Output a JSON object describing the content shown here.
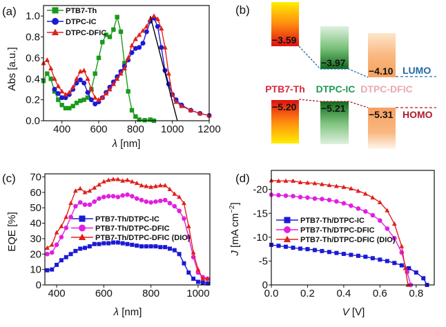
{
  "chart_data": [
    {
      "panel": "(a)",
      "type": "line",
      "xlabel_sym": "λ",
      "xlabel": "[nm]",
      "ylabel": "Abs [a.u.]",
      "xlim": [
        300,
        1200
      ],
      "ylim": [
        0,
        1.1
      ],
      "xticks": [
        400,
        600,
        800,
        1000,
        1200
      ],
      "xtick_labels": [
        "400",
        "600",
        "800",
        "1000",
        "1200"
      ],
      "yticks": [
        0,
        0.2,
        0.4,
        0.6,
        0.8,
        1.0
      ],
      "ytick_labels": [
        "0.0",
        "0.2",
        "0.4",
        "0.6",
        "0.8",
        "1.0"
      ],
      "legend_position": "top-left",
      "series": [
        {
          "name": "PTB7-Th",
          "color": "#1a9a1a",
          "marker": "square",
          "x": [
            300,
            320,
            340,
            360,
            380,
            400,
            420,
            440,
            460,
            480,
            500,
            520,
            540,
            560,
            580,
            600,
            620,
            640,
            660,
            680,
            700,
            720,
            740,
            760,
            780,
            800,
            820,
            850,
            880,
            900
          ],
          "y": [
            0.38,
            0.45,
            0.4,
            0.28,
            0.2,
            0.15,
            0.12,
            0.12,
            0.14,
            0.17,
            0.19,
            0.2,
            0.22,
            0.3,
            0.45,
            0.6,
            0.75,
            0.82,
            0.8,
            0.87,
            0.99,
            0.85,
            0.55,
            0.28,
            0.1,
            0.04,
            0.01,
            0.005,
            0.01,
            0.0
          ]
        },
        {
          "name": "DTPC-IC",
          "color": "#1a1ad6",
          "marker": "circle",
          "x": [
            360,
            380,
            400,
            420,
            440,
            460,
            480,
            500,
            520,
            540,
            560,
            580,
            600,
            620,
            640,
            660,
            680,
            700,
            720,
            740,
            760,
            780,
            800,
            820,
            840,
            860,
            880,
            900,
            920,
            940,
            960,
            980,
            1000,
            1020,
            1050,
            1100,
            1150,
            1200
          ],
          "y": [
            0.3,
            0.26,
            0.22,
            0.22,
            0.25,
            0.3,
            0.36,
            0.39,
            0.36,
            0.27,
            0.2,
            0.16,
            0.18,
            0.22,
            0.27,
            0.32,
            0.37,
            0.42,
            0.47,
            0.52,
            0.58,
            0.65,
            0.69,
            0.7,
            0.74,
            0.85,
            0.95,
            0.98,
            0.9,
            0.7,
            0.48,
            0.35,
            0.25,
            0.2,
            0.15,
            0.1,
            0.07,
            0.05
          ]
        },
        {
          "name": "DTPC-DFIC",
          "color": "#e0201a",
          "marker": "triangle",
          "x": [
            300,
            320,
            340,
            360,
            380,
            400,
            420,
            440,
            460,
            480,
            500,
            520,
            540,
            560,
            580,
            600,
            620,
            640,
            660,
            680,
            700,
            720,
            740,
            760,
            780,
            800,
            820,
            840,
            860,
            880,
            900,
            920,
            940,
            960,
            980,
            1000,
            1020,
            1050,
            1100,
            1150,
            1200
          ],
          "y": [
            0.55,
            0.58,
            0.5,
            0.4,
            0.33,
            0.28,
            0.25,
            0.27,
            0.32,
            0.4,
            0.47,
            0.48,
            0.4,
            0.3,
            0.22,
            0.2,
            0.22,
            0.26,
            0.3,
            0.35,
            0.4,
            0.45,
            0.5,
            0.6,
            0.72,
            0.78,
            0.82,
            0.86,
            0.9,
            0.97,
            1.0,
            0.97,
            0.88,
            0.7,
            0.45,
            0.25,
            0.18,
            0.14,
            0.1,
            0.07,
            0.05
          ]
        }
      ],
      "annotations": [
        {
          "type": "tangent-line",
          "color": "#000000",
          "x": [
            880,
            1027
          ],
          "y": [
            1.0,
            0.0
          ]
        }
      ]
    },
    {
      "panel": "(c)",
      "type": "line",
      "xlabel_sym": "λ",
      "xlabel": "[nm]",
      "ylabel": "EQE [%]",
      "xlim": [
        350,
        1050
      ],
      "ylim": [
        0,
        72
      ],
      "xticks": [
        400,
        600,
        800,
        1000
      ],
      "xtick_labels": [
        "400",
        "600",
        "800",
        "1000"
      ],
      "yticks": [
        0,
        10,
        20,
        30,
        40,
        50,
        60,
        70
      ],
      "ytick_labels": [
        "0",
        "10",
        "20",
        "30",
        "40",
        "50",
        "60",
        "70"
      ],
      "legend_position": "center-left",
      "series": [
        {
          "name": "PTB7-Th/DTPC-IC",
          "color": "#1a1ad6",
          "marker": "square",
          "x": [
            360,
            380,
            400,
            420,
            440,
            460,
            480,
            500,
            520,
            540,
            560,
            580,
            600,
            620,
            640,
            660,
            680,
            700,
            720,
            740,
            760,
            780,
            800,
            820,
            840,
            860,
            880,
            900,
            920,
            940,
            960,
            980,
            1000,
            1020,
            1040
          ],
          "y": [
            9.5,
            10,
            13,
            16,
            18,
            20,
            22,
            23.5,
            24,
            25,
            26.5,
            26.5,
            27,
            27,
            27.5,
            27.5,
            27,
            26.5,
            26,
            25.5,
            25,
            25,
            25,
            25,
            24.5,
            24.5,
            23.5,
            22.5,
            20,
            14,
            8,
            4,
            2,
            1.5,
            1
          ]
        },
        {
          "name": "PTB7-Th/DTPC-DFIC",
          "color": "#e020e0",
          "marker": "circle",
          "x": [
            360,
            380,
            400,
            420,
            440,
            460,
            480,
            500,
            520,
            540,
            560,
            580,
            600,
            620,
            640,
            660,
            680,
            700,
            720,
            740,
            760,
            780,
            800,
            820,
            840,
            860,
            880,
            900,
            920,
            940,
            960,
            980,
            1000,
            1020,
            1040
          ],
          "y": [
            20,
            21,
            26,
            31,
            37,
            44,
            51,
            53.5,
            52,
            52,
            54,
            56,
            57,
            57.5,
            57.5,
            57,
            58,
            58.5,
            57.5,
            56,
            55,
            54,
            53.5,
            54,
            54.5,
            55,
            53,
            51,
            48,
            43,
            31,
            18,
            8,
            5,
            4
          ]
        },
        {
          "name": "PTB7-Th/DTPC-DFIC (DIO)",
          "color": "#e0201a",
          "marker": "triangle",
          "x": [
            360,
            380,
            400,
            420,
            440,
            460,
            480,
            500,
            520,
            540,
            560,
            580,
            600,
            620,
            640,
            660,
            680,
            700,
            720,
            740,
            760,
            780,
            800,
            820,
            840,
            860,
            880,
            900,
            920,
            940,
            960,
            980,
            1000,
            1020,
            1040
          ],
          "y": [
            24,
            26,
            34,
            38,
            44,
            53,
            61,
            62.5,
            60,
            61,
            63,
            65,
            67,
            68,
            68.5,
            68.5,
            67.5,
            68,
            67,
            66,
            64.5,
            64,
            63.5,
            64,
            64.5,
            64.5,
            62,
            59,
            57,
            53,
            38,
            21,
            10,
            4,
            4
          ]
        }
      ]
    },
    {
      "panel": "(d)",
      "type": "line",
      "xlabel_sym": "V",
      "xlabel": "[V]",
      "ylabel_sym": "J",
      "ylabel": "[mA cm",
      "ylabel_sup": "−2",
      "ylabel_end": "]",
      "xlim": [
        0,
        0.9
      ],
      "ylim": [
        0,
        -24
      ],
      "xticks": [
        0,
        0.2,
        0.4,
        0.6,
        0.8
      ],
      "xtick_labels": [
        "0.0",
        "0.2",
        "0.4",
        "0.6",
        "0.8"
      ],
      "yticks": [
        0,
        -5,
        -10,
        -15,
        -20
      ],
      "ytick_labels": [
        "0",
        "-5",
        "-10",
        "-15",
        "-20"
      ],
      "legend_position": "center-left",
      "series": [
        {
          "name": "PTB7-Th/DTPC-IC",
          "color": "#1a1ad6",
          "marker": "square",
          "x": [
            0,
            0.04,
            0.08,
            0.12,
            0.16,
            0.2,
            0.24,
            0.28,
            0.32,
            0.36,
            0.4,
            0.44,
            0.48,
            0.52,
            0.56,
            0.6,
            0.64,
            0.68,
            0.72,
            0.76,
            0.8,
            0.84,
            0.86
          ],
          "y": [
            -8.4,
            -8.2,
            -8.0,
            -7.8,
            -7.6,
            -7.5,
            -7.3,
            -7.1,
            -6.9,
            -6.7,
            -6.5,
            -6.3,
            -6.1,
            -5.9,
            -5.6,
            -5.3,
            -5.0,
            -4.6,
            -4.1,
            -3.5,
            -2.6,
            -1.4,
            0
          ]
        },
        {
          "name": "PTB7-Th/DTPC-DFIC",
          "color": "#e020e0",
          "marker": "circle",
          "x": [
            0,
            0.04,
            0.08,
            0.12,
            0.16,
            0.2,
            0.24,
            0.28,
            0.32,
            0.36,
            0.4,
            0.44,
            0.48,
            0.52,
            0.56,
            0.6,
            0.64,
            0.68,
            0.72,
            0.75,
            0.77
          ],
          "y": [
            -18.9,
            -18.8,
            -18.7,
            -18.6,
            -18.4,
            -18.3,
            -18.1,
            -18.0,
            -17.8,
            -17.5,
            -17.1,
            -16.6,
            -16.0,
            -15.4,
            -14.6,
            -13.5,
            -11.8,
            -9.8,
            -6.8,
            -2.7,
            0
          ]
        },
        {
          "name": "PTB7-Th/DTPC-DFIC (DIO)",
          "color": "#e0201a",
          "marker": "triangle",
          "x": [
            0,
            0.04,
            0.08,
            0.12,
            0.16,
            0.2,
            0.24,
            0.28,
            0.32,
            0.36,
            0.4,
            0.44,
            0.48,
            0.52,
            0.56,
            0.6,
            0.64,
            0.68,
            0.72,
            0.74,
            0.755
          ],
          "y": [
            -21.9,
            -21.8,
            -21.8,
            -21.8,
            -21.5,
            -21.4,
            -21.3,
            -21.1,
            -20.9,
            -20.7,
            -20.5,
            -20.2,
            -19.7,
            -19.1,
            -18.3,
            -17.3,
            -15.6,
            -12.8,
            -8.1,
            -3.5,
            0
          ]
        }
      ]
    }
  ],
  "energy_diagram": {
    "panel": "(b)",
    "materials": [
      {
        "name": "PTB7-Th",
        "color": "#d8283a",
        "lumo": "−3.59",
        "homo": "−5.20"
      },
      {
        "name": "DTPC-IC",
        "color": "#1f9a52",
        "lumo": "−3.97",
        "homo": "−5.21"
      },
      {
        "name": "DTPC-DFIC",
        "color": "#eaa8b0",
        "lumo": "−4.10",
        "homo": "−5.31"
      }
    ],
    "lumo_label": "LUMO",
    "homo_label": "HOMO",
    "lumo_color": "#1f6aa5",
    "homo_color": "#b0192a"
  }
}
